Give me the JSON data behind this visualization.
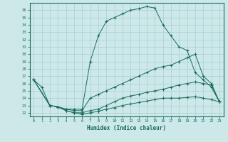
{
  "xlabel": "Humidex (Indice chaleur)",
  "xlim": [
    -0.5,
    23.5
  ],
  "ylim": [
    21.5,
    37.0
  ],
  "yticks": [
    22,
    23,
    24,
    25,
    26,
    27,
    28,
    29,
    30,
    31,
    32,
    33,
    34,
    35,
    36
  ],
  "xticks": [
    0,
    1,
    2,
    3,
    4,
    5,
    6,
    7,
    8,
    9,
    10,
    11,
    12,
    13,
    14,
    15,
    16,
    17,
    18,
    19,
    20,
    21,
    22,
    23
  ],
  "color": "#1a6b5a",
  "bg_color": "#cce8e8",
  "grid_color": "#a0c8c8",
  "line1_x": [
    0,
    1,
    2,
    3,
    4,
    5,
    6,
    7,
    8,
    9,
    10,
    11,
    12,
    13,
    14,
    15,
    16,
    17,
    18,
    19,
    20,
    21,
    22,
    23
  ],
  "line1_y": [
    26.5,
    25.5,
    23.0,
    22.8,
    22.5,
    22.5,
    22.5,
    29.0,
    32.5,
    34.5,
    35.0,
    35.5,
    36.0,
    36.2,
    36.5,
    36.3,
    34.0,
    32.5,
    31.0,
    30.5,
    27.5,
    26.5,
    25.5,
    23.5
  ],
  "line2_x": [
    0,
    2,
    3,
    4,
    5,
    6,
    7,
    8,
    9,
    10,
    11,
    12,
    13,
    14,
    15,
    16,
    17,
    18,
    19,
    20,
    21,
    22,
    23
  ],
  "line2_y": [
    26.5,
    23.0,
    22.8,
    22.5,
    22.3,
    22.3,
    24.0,
    24.5,
    25.0,
    25.5,
    26.0,
    26.5,
    27.0,
    27.5,
    28.0,
    28.3,
    28.5,
    29.0,
    29.5,
    30.0,
    27.0,
    26.0,
    23.5
  ],
  "line3_x": [
    0,
    2,
    3,
    4,
    5,
    6,
    7,
    8,
    9,
    10,
    11,
    12,
    13,
    14,
    15,
    16,
    17,
    18,
    19,
    20,
    21,
    22,
    23
  ],
  "line3_y": [
    26.5,
    23.0,
    22.8,
    22.3,
    22.0,
    22.0,
    22.3,
    22.5,
    23.0,
    23.5,
    24.0,
    24.3,
    24.5,
    24.8,
    25.0,
    25.2,
    25.5,
    25.8,
    26.0,
    26.2,
    26.0,
    25.8,
    23.5
  ],
  "line4_x": [
    0,
    2,
    3,
    4,
    5,
    6,
    7,
    8,
    9,
    10,
    11,
    12,
    13,
    14,
    15,
    16,
    17,
    18,
    19,
    20,
    21,
    22,
    23
  ],
  "line4_y": [
    26.5,
    23.0,
    22.8,
    22.3,
    22.0,
    21.8,
    22.0,
    22.2,
    22.5,
    22.7,
    23.0,
    23.2,
    23.4,
    23.6,
    23.8,
    24.0,
    24.0,
    24.0,
    24.1,
    24.2,
    24.0,
    23.8,
    23.5
  ]
}
